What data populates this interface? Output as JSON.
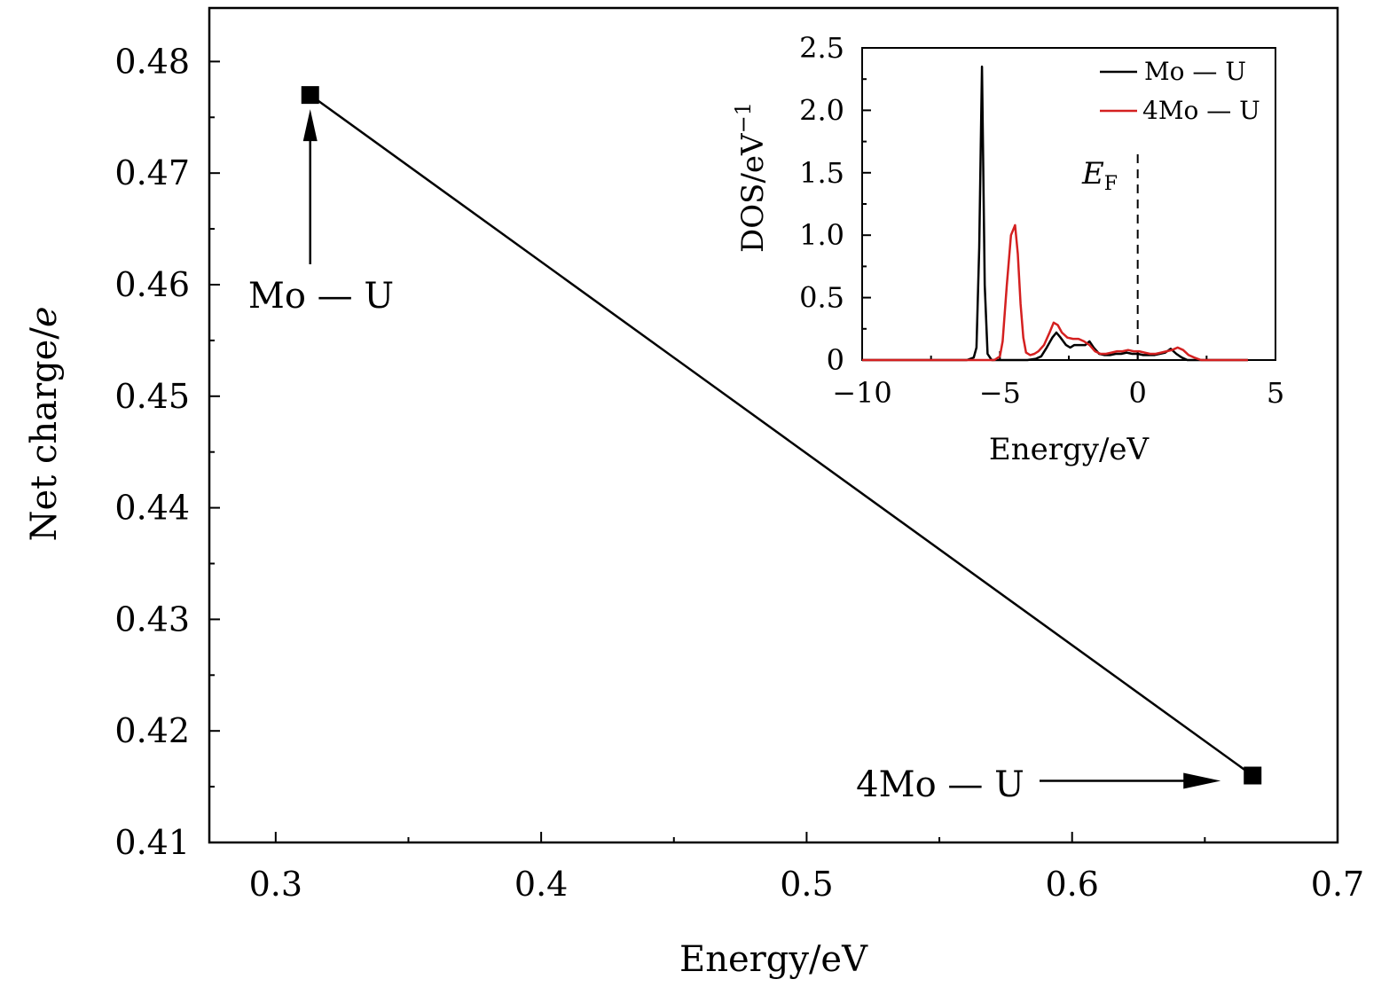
{
  "chart_data": [
    {
      "id": "main",
      "type": "line",
      "title": "",
      "xlabel": "Energy/eV",
      "ylabel_prefix": "Net charge/",
      "ylabel_var": "e",
      "xlim": [
        0.275,
        0.7
      ],
      "ylim": [
        0.41,
        0.4848
      ],
      "x_ticks": [
        0.3,
        0.4,
        0.5,
        0.6,
        0.7
      ],
      "x_tick_labels": [
        "0.3",
        "0.4",
        "0.5",
        "0.6",
        "0.7"
      ],
      "x_minor_ticks": [
        0.35,
        0.45,
        0.55,
        0.65
      ],
      "y_ticks": [
        0.41,
        0.42,
        0.43,
        0.44,
        0.45,
        0.46,
        0.47,
        0.48
      ],
      "y_tick_labels": [
        "0.41",
        "0.42",
        "0.43",
        "0.44",
        "0.45",
        "0.46",
        "0.47",
        "0.48"
      ],
      "y_minor_ticks": [
        0.415,
        0.425,
        0.435,
        0.445,
        0.455,
        0.465,
        0.475
      ],
      "grid": false,
      "marker": "square",
      "series": [
        {
          "name": "Net charge",
          "color": "#000000",
          "points": [
            {
              "x": 0.313,
              "y": 0.477,
              "label": "Mo — U"
            },
            {
              "x": 0.668,
              "y": 0.416,
              "label": "4Mo — U"
            }
          ]
        }
      ],
      "annotations": [
        {
          "text": "Mo — U",
          "target_index": 0
        },
        {
          "text": "4Mo — U",
          "target_index": 1
        }
      ]
    },
    {
      "id": "inset",
      "type": "line",
      "title": "",
      "xlabel": "Energy/eV",
      "ylabel": "DOS/eV",
      "ylabel_sup": "−1",
      "xlim": [
        -10,
        5
      ],
      "ylim": [
        0,
        2.5
      ],
      "x_ticks": [
        -10,
        -5,
        0,
        5
      ],
      "x_tick_labels": [
        "−10",
        "−5",
        "0",
        "5"
      ],
      "x_minor_ticks": [
        -7.5,
        -2.5,
        2.5
      ],
      "y_ticks": [
        0,
        0.5,
        1.0,
        1.5,
        2.0,
        2.5
      ],
      "y_tick_labels": [
        "0",
        "0.5",
        "1.0",
        "1.5",
        "2.0",
        "2.5"
      ],
      "y_minor_ticks": [
        0.25,
        0.75,
        1.25,
        1.75,
        2.25
      ],
      "grid": false,
      "legend_position": "top-right",
      "fermi_level": {
        "x": 0,
        "label_main": "E",
        "label_sub": "F"
      },
      "series": [
        {
          "name": "Mo — U",
          "color": "#000000",
          "x": [
            -10,
            -7,
            -6.2,
            -5.95,
            -5.85,
            -5.75,
            -5.65,
            -5.55,
            -5.45,
            -5.3,
            -5.0,
            -4.0,
            -3.7,
            -3.5,
            -3.3,
            -3.1,
            -2.95,
            -2.8,
            -2.6,
            -2.45,
            -2.3,
            -2.1,
            -1.9,
            -1.75,
            -1.6,
            -1.4,
            -1.2,
            -1.0,
            -0.8,
            -0.6,
            -0.4,
            -0.2,
            0,
            0.2,
            0.4,
            0.6,
            0.8,
            1.0,
            1.2,
            1.4,
            1.6,
            1.8,
            2.0,
            3.0,
            4.0
          ],
          "y": [
            0,
            0,
            0,
            0.02,
            0.1,
            0.9,
            2.35,
            0.6,
            0.05,
            0,
            0,
            0,
            0.01,
            0.03,
            0.1,
            0.18,
            0.22,
            0.18,
            0.12,
            0.1,
            0.12,
            0.12,
            0.12,
            0.15,
            0.1,
            0.05,
            0.04,
            0.04,
            0.05,
            0.05,
            0.06,
            0.05,
            0.05,
            0.04,
            0.04,
            0.04,
            0.05,
            0.06,
            0.09,
            0.05,
            0.02,
            0,
            0,
            0,
            0
          ]
        },
        {
          "name": "4Mo — U",
          "color": "#d42020",
          "x": [
            -10,
            -6,
            -5.2,
            -5.0,
            -4.9,
            -4.75,
            -4.6,
            -4.45,
            -4.35,
            -4.25,
            -4.15,
            -4.05,
            -3.9,
            -3.75,
            -3.6,
            -3.4,
            -3.2,
            -3.05,
            -2.9,
            -2.75,
            -2.55,
            -2.35,
            -2.15,
            -1.95,
            -1.75,
            -1.55,
            -1.35,
            -1.15,
            -0.95,
            -0.75,
            -0.55,
            -0.35,
            -0.15,
            0.05,
            0.25,
            0.45,
            0.65,
            0.85,
            1.05,
            1.25,
            1.45,
            1.65,
            1.85,
            2.05,
            2.3,
            3.0,
            4.0
          ],
          "y": [
            0,
            0,
            0,
            0.03,
            0.15,
            0.6,
            1.0,
            1.08,
            0.85,
            0.45,
            0.18,
            0.06,
            0.04,
            0.05,
            0.07,
            0.12,
            0.22,
            0.3,
            0.28,
            0.22,
            0.18,
            0.17,
            0.17,
            0.15,
            0.12,
            0.07,
            0.05,
            0.05,
            0.06,
            0.07,
            0.07,
            0.08,
            0.07,
            0.07,
            0.06,
            0.05,
            0.05,
            0.06,
            0.07,
            0.08,
            0.1,
            0.08,
            0.04,
            0.02,
            0,
            0,
            0
          ]
        }
      ]
    }
  ]
}
